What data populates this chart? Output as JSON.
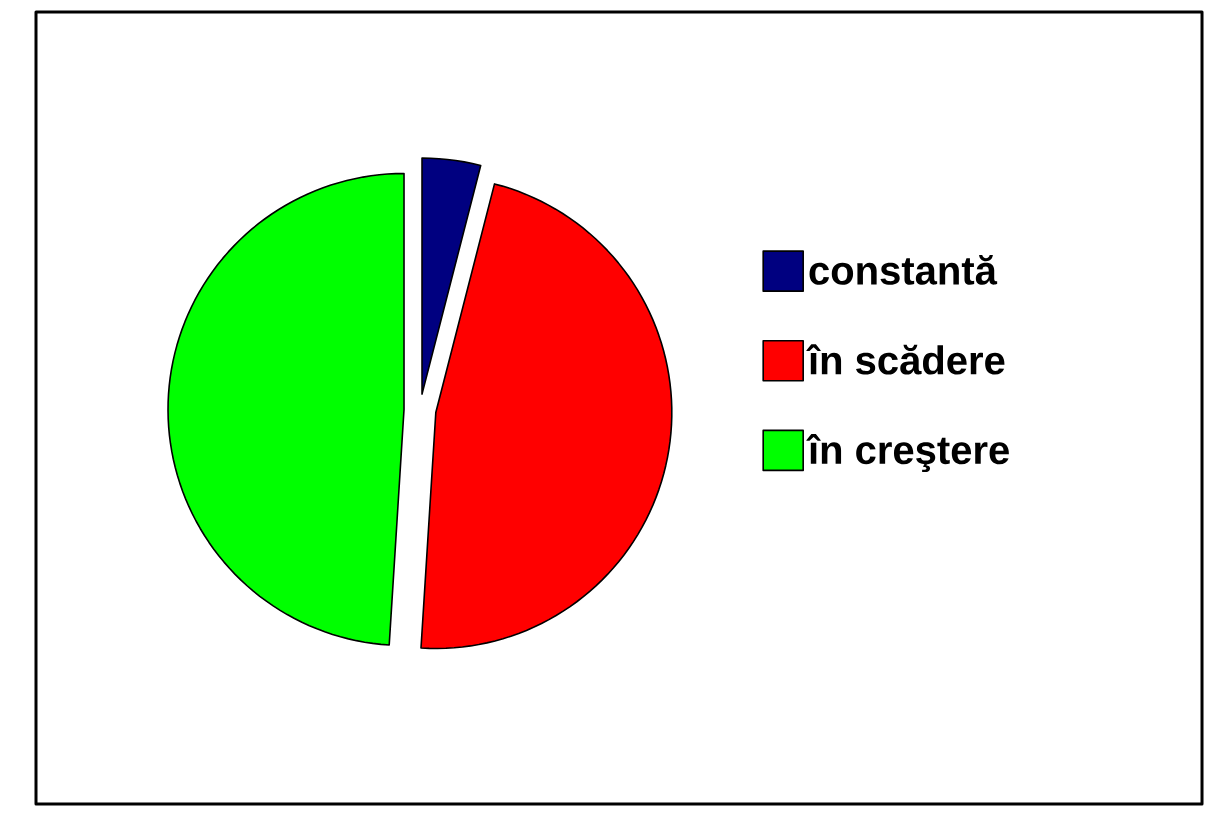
{
  "chart_data": {
    "type": "pie",
    "categories": [
      "constantă",
      "în scădere",
      "în creştere"
    ],
    "values": [
      4,
      47,
      49
    ],
    "colors": [
      "#000080",
      "#ff0000",
      "#00ff00"
    ],
    "legend": "right"
  }
}
